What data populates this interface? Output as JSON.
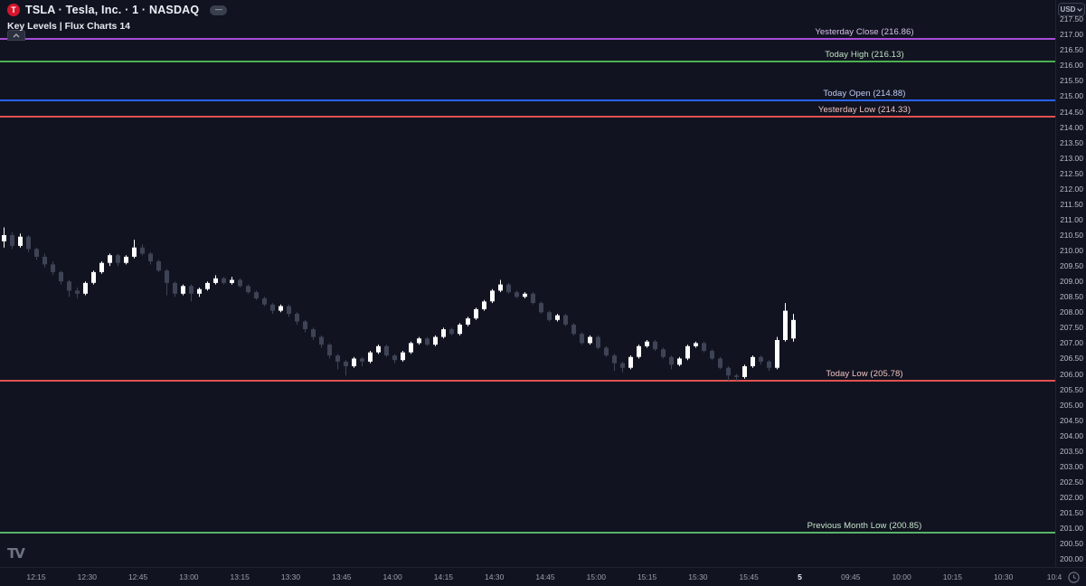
{
  "header": {
    "symbol_title": "TSLA · Tesla, Inc. · 1 · NASDAQ",
    "symbol_logo_letter": "T",
    "collapse_pill_label": "—",
    "indicator_title": "Key Levels | Flux Charts 14"
  },
  "price_axis": {
    "currency_label": "USD"
  },
  "colors": {
    "background": "#111420",
    "candle_up": "#ffffff",
    "candle_down": "#3e4455",
    "axis_text": "#b8bdc9"
  },
  "chart_data": {
    "type": "candlestick",
    "title": "TSLA · Tesla, Inc. · 1 · NASDAQ",
    "interval_minutes": 1,
    "grid": false,
    "legend_position": "top-left",
    "ylim": [
      199.9,
      217.6
    ],
    "y_ticks": [
      "217.50",
      "217.00",
      "216.50",
      "216.00",
      "215.50",
      "215.00",
      "214.50",
      "214.00",
      "213.50",
      "213.00",
      "212.50",
      "212.00",
      "211.50",
      "211.00",
      "210.50",
      "210.00",
      "209.50",
      "209.00",
      "208.50",
      "208.00",
      "207.50",
      "207.00",
      "206.50",
      "206.00",
      "205.50",
      "205.00",
      "204.50",
      "204.00",
      "203.50",
      "203.00",
      "202.50",
      "202.00",
      "201.50",
      "201.00",
      "200.50",
      "200.00"
    ],
    "x_ticks": [
      "12:15",
      "12:30",
      "12:45",
      "13:00",
      "13:15",
      "13:30",
      "13:45",
      "14:00",
      "14:15",
      "14:30",
      "14:45",
      "15:00",
      "15:15",
      "15:30",
      "15:45",
      "5",
      "09:45",
      "10:00",
      "10:15",
      "10:30",
      "10:4"
    ],
    "day_separator_label": "5",
    "levels": [
      {
        "name": "yesterday-close",
        "label": "Yesterday Close (216.86)",
        "price": 216.86,
        "color": "#a64dd6",
        "label_color": "#d9c0ec"
      },
      {
        "name": "today-high",
        "label": "Today High (216.13)",
        "price": 216.13,
        "color": "#4caf50",
        "label_color": "#c2e0c6"
      },
      {
        "name": "today-open",
        "label": "Today Open (214.88)",
        "price": 214.88,
        "color": "#2962ff",
        "label_color": "#bfcdf5"
      },
      {
        "name": "yesterday-low",
        "label": "Yesterday Low (214.33)",
        "price": 214.33,
        "color": "#e05050",
        "label_color": "#f0c2c2"
      },
      {
        "name": "today-low",
        "label": "Today Low (205.78)",
        "price": 205.78,
        "color": "#e05050",
        "label_color": "#f0c2c2"
      },
      {
        "name": "previous-month-low",
        "label": "Previous Month Low (200.85)",
        "price": 200.85,
        "color": "#58b36a",
        "label_color": "#c6e4cc"
      }
    ],
    "candles_format": [
      "open",
      "high",
      "low",
      "close"
    ],
    "candles": [
      [
        210.3,
        210.75,
        210.1,
        210.5
      ],
      [
        210.5,
        210.6,
        210.05,
        210.15
      ],
      [
        210.15,
        210.55,
        210.1,
        210.45
      ],
      [
        210.45,
        210.5,
        209.95,
        210.05
      ],
      [
        210.05,
        210.1,
        209.7,
        209.8
      ],
      [
        209.8,
        209.9,
        209.45,
        209.55
      ],
      [
        209.55,
        209.65,
        209.2,
        209.3
      ],
      [
        209.3,
        209.35,
        208.9,
        209.0
      ],
      [
        209.0,
        209.05,
        208.5,
        208.7
      ],
      [
        208.7,
        208.8,
        208.45,
        208.6
      ],
      [
        208.6,
        209.0,
        208.55,
        208.95
      ],
      [
        208.95,
        209.35,
        208.9,
        209.3
      ],
      [
        209.3,
        209.65,
        209.25,
        209.6
      ],
      [
        209.6,
        209.9,
        209.5,
        209.85
      ],
      [
        209.85,
        209.9,
        209.5,
        209.6
      ],
      [
        209.6,
        209.85,
        209.55,
        209.8
      ],
      [
        209.8,
        210.35,
        209.75,
        210.1
      ],
      [
        210.1,
        210.2,
        209.85,
        209.9
      ],
      [
        209.9,
        209.95,
        209.55,
        209.65
      ],
      [
        209.65,
        209.7,
        209.3,
        209.35
      ],
      [
        209.35,
        209.4,
        208.55,
        208.95
      ],
      [
        208.95,
        209.0,
        208.5,
        208.6
      ],
      [
        208.6,
        208.9,
        208.55,
        208.85
      ],
      [
        208.85,
        208.9,
        208.35,
        208.6
      ],
      [
        208.6,
        208.8,
        208.5,
        208.75
      ],
      [
        208.75,
        209.0,
        208.7,
        208.95
      ],
      [
        208.95,
        209.2,
        208.9,
        209.1
      ],
      [
        209.1,
        209.15,
        208.9,
        208.95
      ],
      [
        208.95,
        209.15,
        208.9,
        209.05
      ],
      [
        209.05,
        209.1,
        208.8,
        208.85
      ],
      [
        208.85,
        208.9,
        208.6,
        208.65
      ],
      [
        208.65,
        208.7,
        208.4,
        208.45
      ],
      [
        208.45,
        208.5,
        208.2,
        208.25
      ],
      [
        208.25,
        208.3,
        207.95,
        208.05
      ],
      [
        208.05,
        208.25,
        208.0,
        208.2
      ],
      [
        208.2,
        208.25,
        207.85,
        207.95
      ],
      [
        207.95,
        208.0,
        207.6,
        207.7
      ],
      [
        207.7,
        207.75,
        207.35,
        207.45
      ],
      [
        207.45,
        207.5,
        207.1,
        207.2
      ],
      [
        207.2,
        207.25,
        206.85,
        206.95
      ],
      [
        206.95,
        207.0,
        206.5,
        206.6
      ],
      [
        206.6,
        206.65,
        206.15,
        206.4
      ],
      [
        206.4,
        206.45,
        205.95,
        206.25
      ],
      [
        206.25,
        206.55,
        206.2,
        206.5
      ],
      [
        206.5,
        206.55,
        206.25,
        206.4
      ],
      [
        206.4,
        206.75,
        206.35,
        206.7
      ],
      [
        206.7,
        206.95,
        206.65,
        206.9
      ],
      [
        206.9,
        206.95,
        206.55,
        206.6
      ],
      [
        206.6,
        206.65,
        206.35,
        206.45
      ],
      [
        206.45,
        206.75,
        206.4,
        206.7
      ],
      [
        206.7,
        207.05,
        206.65,
        207.0
      ],
      [
        207.0,
        207.2,
        206.95,
        207.15
      ],
      [
        207.15,
        207.2,
        206.9,
        206.95
      ],
      [
        206.95,
        207.25,
        206.9,
        207.2
      ],
      [
        207.2,
        207.5,
        207.15,
        207.45
      ],
      [
        207.45,
        207.5,
        207.25,
        207.3
      ],
      [
        207.3,
        207.65,
        207.25,
        207.6
      ],
      [
        207.6,
        207.85,
        207.55,
        207.8
      ],
      [
        207.8,
        208.15,
        207.75,
        208.1
      ],
      [
        208.1,
        208.4,
        208.05,
        208.35
      ],
      [
        208.35,
        208.75,
        208.3,
        208.7
      ],
      [
        208.7,
        209.05,
        208.65,
        208.9
      ],
      [
        208.9,
        208.95,
        208.6,
        208.65
      ],
      [
        208.65,
        208.7,
        208.45,
        208.5
      ],
      [
        208.5,
        208.65,
        208.45,
        208.6
      ],
      [
        208.6,
        208.65,
        208.25,
        208.3
      ],
      [
        208.3,
        208.35,
        207.95,
        208.0
      ],
      [
        208.0,
        208.05,
        207.7,
        207.75
      ],
      [
        207.75,
        207.95,
        207.7,
        207.9
      ],
      [
        207.9,
        207.95,
        207.55,
        207.6
      ],
      [
        207.6,
        207.65,
        207.25,
        207.3
      ],
      [
        207.3,
        207.35,
        206.95,
        207.0
      ],
      [
        207.0,
        207.25,
        206.95,
        207.2
      ],
      [
        207.2,
        207.25,
        206.8,
        206.85
      ],
      [
        206.85,
        206.9,
        206.55,
        206.6
      ],
      [
        206.6,
        206.65,
        206.1,
        206.35
      ],
      [
        206.35,
        206.4,
        206.05,
        206.2
      ],
      [
        206.2,
        206.6,
        206.15,
        206.55
      ],
      [
        206.55,
        206.95,
        206.5,
        206.9
      ],
      [
        206.9,
        207.1,
        206.85,
        207.05
      ],
      [
        207.05,
        207.1,
        206.75,
        206.8
      ],
      [
        206.8,
        206.85,
        206.5,
        206.55
      ],
      [
        206.55,
        206.6,
        206.15,
        206.3
      ],
      [
        206.3,
        206.55,
        206.25,
        206.5
      ],
      [
        206.5,
        206.95,
        206.45,
        206.9
      ],
      [
        206.9,
        207.05,
        206.85,
        207.0
      ],
      [
        207.0,
        207.05,
        206.7,
        206.75
      ],
      [
        206.75,
        206.8,
        206.45,
        206.5
      ],
      [
        206.5,
        206.55,
        206.15,
        206.2
      ],
      [
        206.2,
        206.25,
        205.78,
        205.95
      ],
      [
        205.95,
        206.0,
        205.78,
        205.9
      ],
      [
        205.9,
        206.3,
        205.85,
        206.25
      ],
      [
        206.25,
        206.6,
        206.2,
        206.55
      ],
      [
        206.55,
        206.6,
        206.3,
        206.4
      ],
      [
        206.4,
        206.45,
        206.1,
        206.2
      ],
      [
        206.2,
        207.2,
        206.15,
        207.1
      ],
      [
        207.1,
        208.3,
        207.05,
        208.05
      ],
      [
        207.15,
        207.95,
        207.05,
        207.75
      ]
    ]
  }
}
